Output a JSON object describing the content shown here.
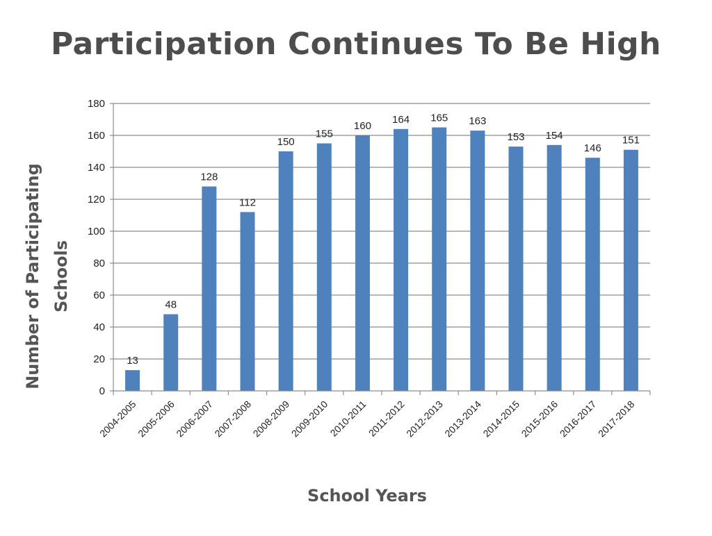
{
  "page": {
    "title": "Participation Continues To Be High"
  },
  "chart_data": {
    "type": "bar",
    "title": "Participation Continues To Be High",
    "xlabel": "School Years",
    "ylabel_lines": [
      "Number of Participating",
      "Schools"
    ],
    "categories": [
      "2004-2005",
      "2005-2006",
      "2006-2007",
      "2007-2008",
      "2008-2009",
      "2009-2010",
      "2010-2011",
      "2011-2012",
      "2012-2013",
      "2013-2014",
      "2014-2015",
      "2015-2016",
      "2016-2017",
      "2017-2018"
    ],
    "values": [
      13,
      48,
      128,
      112,
      150,
      155,
      160,
      164,
      165,
      163,
      153,
      154,
      146,
      151
    ],
    "ylim": [
      0,
      180
    ],
    "yticks": [
      0,
      20,
      40,
      60,
      80,
      100,
      120,
      140,
      160,
      180
    ],
    "grid": true,
    "data_labels": true,
    "legend": "none",
    "bar_color": "#4f81bd",
    "gridline_color": "#8c8c8c"
  }
}
